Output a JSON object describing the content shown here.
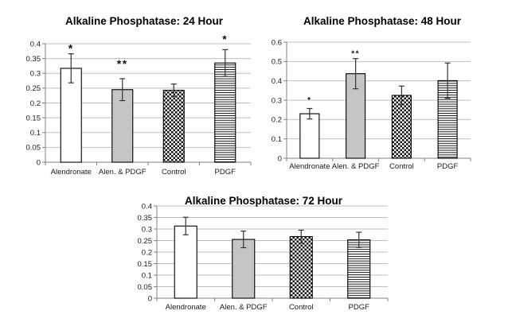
{
  "figure_background": "#ffffff",
  "colors": {
    "gridline": "#bfbfbf",
    "axis": "#808080",
    "bar_outline": "#000000",
    "gray_fill": "#c5c5c5",
    "error_bar": "#333333",
    "text": "#1a1a1a",
    "title": "#000000",
    "pattern_ink": "#111111"
  },
  "chart_data": [
    {
      "type": "bar",
      "title": "Alkaline Phosphatase: 24 Hour",
      "categories": [
        "Alendronate",
        "Alen. & PDGF",
        "Control",
        "PDGF"
      ],
      "values": [
        0.317,
        0.245,
        0.243,
        0.335
      ],
      "errors": [
        0.049,
        0.037,
        0.021,
        0.045
      ],
      "bar_styles": [
        "white",
        "gray",
        "checker",
        "hlines"
      ],
      "annotations": [
        {
          "category_index": 0,
          "text": "*",
          "y": 0.392
        },
        {
          "category_index": 1,
          "text": "**",
          "y": 0.34
        },
        {
          "category_index": 3,
          "text": "*",
          "y": 0.424
        }
      ],
      "xlabel": "",
      "ylabel": "",
      "ylim": [
        0,
        0.4
      ],
      "ytick_step": 0.05,
      "ytick_labels": [
        "0",
        "0.05",
        "0.1",
        "0.15",
        "0.2",
        "0.25",
        "0.3",
        "0.35",
        "0.4"
      ],
      "grid": "horizontal",
      "legend": "none"
    },
    {
      "type": "bar",
      "title": "Alkaline Phosphatase: 48 Hour",
      "categories": [
        "Alendronate",
        "Alen. & PDGF",
        "Control",
        "PDGF"
      ],
      "values": [
        0.23,
        0.437,
        0.325,
        0.401
      ],
      "errors": [
        0.027,
        0.078,
        0.048,
        0.091
      ],
      "bar_styles": [
        "white",
        "gray",
        "checker",
        "hlines"
      ],
      "annotations": [
        {
          "category_index": 0,
          "text": "*",
          "y": 0.31
        },
        {
          "category_index": 1,
          "text": "**",
          "y": 0.551
        }
      ],
      "xlabel": "",
      "ylabel": "",
      "ylim": [
        0,
        0.6
      ],
      "ytick_step": 0.1,
      "ytick_labels": [
        "0",
        "0.1",
        "0.2",
        "0.3",
        "0.4",
        "0.5",
        "0.6"
      ],
      "grid": "horizontal",
      "legend": "none"
    },
    {
      "type": "bar",
      "title": "Alkaline Phosphatase: 72 Hour",
      "categories": [
        "Alendronate",
        "Alen. & PDGF",
        "Control",
        "PDGF"
      ],
      "values": [
        0.313,
        0.255,
        0.267,
        0.253
      ],
      "errors": [
        0.038,
        0.036,
        0.028,
        0.033
      ],
      "bar_styles": [
        "white",
        "gray",
        "checker",
        "hlines"
      ],
      "annotations": [],
      "xlabel": "",
      "ylabel": "",
      "ylim": [
        0,
        0.4
      ],
      "ytick_step": 0.05,
      "ytick_labels": [
        "0",
        "0.05",
        "0.1",
        "0.15",
        "0.2",
        "0.25",
        "0.3",
        "0.35",
        "0.4"
      ],
      "grid": "horizontal",
      "legend": "none"
    }
  ]
}
